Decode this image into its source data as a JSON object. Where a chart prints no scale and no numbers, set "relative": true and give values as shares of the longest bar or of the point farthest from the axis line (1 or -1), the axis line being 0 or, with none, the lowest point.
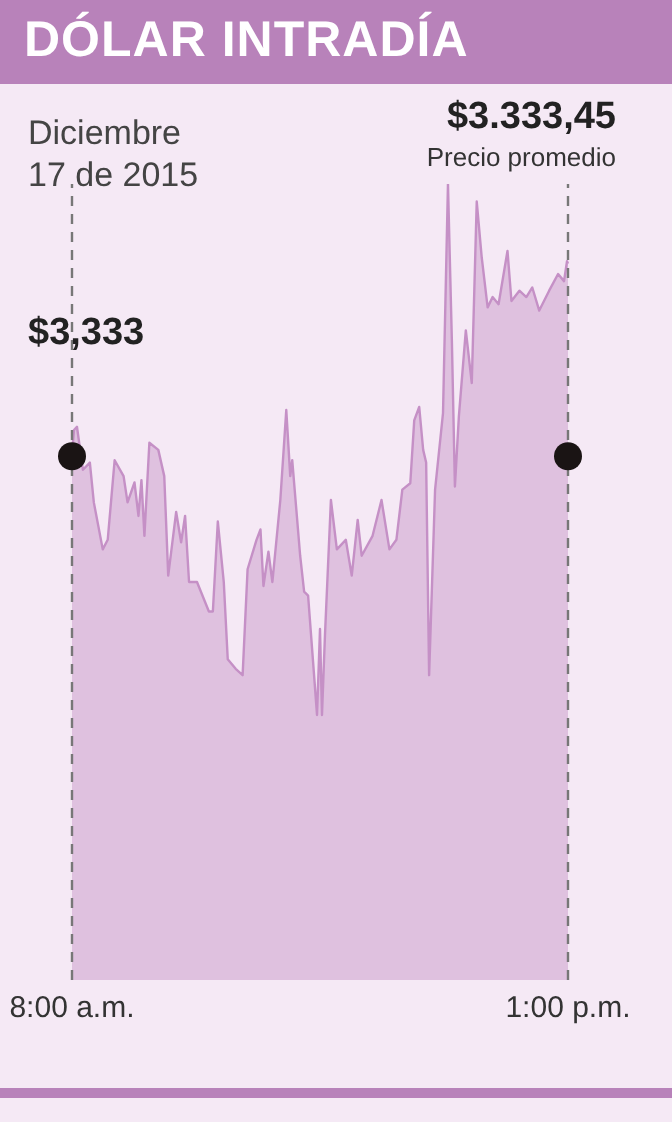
{
  "chart_data": {
    "type": "area",
    "title": "DÓLAR INTRADÍA",
    "subtitle": "Diciembre 17 de 2015",
    "relative": true,
    "xlim": [
      8,
      13
    ],
    "xticks": [
      {
        "value": 8,
        "label": "8:00 a.m."
      },
      {
        "value": 13,
        "label": "1:00 p.m."
      }
    ],
    "tick_labels": "x",
    "series": [
      {
        "color": "#c590c6",
        "x": [
          8,
          8.02,
          8.05,
          8.11,
          8.18,
          8.22,
          8.31,
          8.36,
          8.43,
          8.52,
          8.56,
          8.63,
          8.67,
          8.7,
          8.73,
          8.78,
          8.87,
          8.93,
          8.97,
          9.05,
          9.1,
          9.14,
          9.18,
          9.26,
          9.38,
          9.42,
          9.47,
          9.53,
          9.57,
          9.65,
          9.72,
          9.77,
          9.86,
          9.9,
          9.93,
          9.98,
          10.02,
          10.1,
          10.16,
          10.2,
          10.22,
          10.3,
          10.34,
          10.38,
          10.43,
          10.47,
          10.5,
          10.52,
          10.55,
          10.61,
          10.67,
          10.76,
          10.82,
          10.88,
          10.92,
          11.03,
          11.12,
          11.2,
          11.27,
          11.33,
          11.41,
          11.45,
          11.5,
          11.54,
          11.57,
          11.6,
          11.66,
          11.74,
          11.79,
          11.83,
          11.86,
          11.9,
          11.97,
          12.03,
          12.08,
          12.13,
          12.19,
          12.24,
          12.3,
          12.39,
          12.43,
          12.51,
          12.58,
          12.64,
          12.71,
          12.81,
          12.9,
          12.96,
          12.99,
          13
        ],
        "values": [
          0.66,
          0.691,
          0.695,
          0.641,
          0.65,
          0.6,
          0.541,
          0.553,
          0.653,
          0.633,
          0.6,
          0.625,
          0.583,
          0.628,
          0.558,
          0.675,
          0.666,
          0.633,
          0.508,
          0.588,
          0.55,
          0.583,
          0.5,
          0.5,
          0.463,
          0.463,
          0.576,
          0.5,
          0.403,
          0.391,
          0.383,
          0.516,
          0.553,
          0.566,
          0.495,
          0.538,
          0.5,
          0.603,
          0.716,
          0.633,
          0.653,
          0.533,
          0.488,
          0.483,
          0.4,
          0.333,
          0.441,
          0.333,
          0.433,
          0.603,
          0.541,
          0.553,
          0.508,
          0.578,
          0.533,
          0.558,
          0.603,
          0.541,
          0.553,
          0.616,
          0.624,
          0.703,
          0.72,
          0.666,
          0.65,
          0.383,
          0.616,
          0.712,
          1,
          0.8,
          0.62,
          0.708,
          0.816,
          0.75,
          0.978,
          0.908,
          0.845,
          0.858,
          0.849,
          0.916,
          0.853,
          0.866,
          0.858,
          0.87,
          0.841,
          0.866,
          0.887,
          0.878,
          0.903,
          0.9
        ]
      },
      {
        "type": "scatter",
        "color": "#1a1414",
        "x": [
          8,
          13
        ],
        "values": [
          0.658,
          0.658
        ]
      }
    ],
    "ref_lines": [
      {
        "axis": "x",
        "value": 8,
        "color": "#777777",
        "line_style": "dashed"
      },
      {
        "axis": "x",
        "value": 13,
        "color": "#777777",
        "line_style": "dashed"
      }
    ],
    "annotations": [
      "$3,333",
      "$3.333,45",
      "Precio promedio"
    ]
  }
}
